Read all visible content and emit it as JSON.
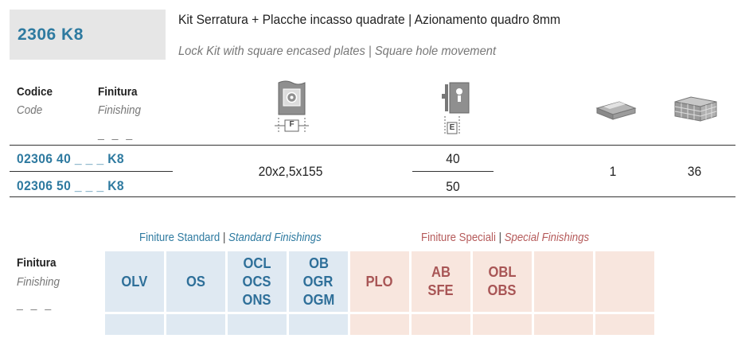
{
  "header": {
    "code": "2306 K8",
    "title_it": "Kit Serratura + Placche incasso quadrate | Azionamento quadro 8mm",
    "title_en": "Lock Kit with square encased plates | Square hole movement"
  },
  "columns": {
    "code_label": "Codice",
    "code_label_en": "Code",
    "finish_label": "Finitura",
    "finish_label_en": "Finishing",
    "finish_placeholder": "_ _ _",
    "f_label": "F",
    "e_label": "E",
    "icons": [
      "plate-dimension-icon",
      "backset-icon",
      "single-pack-icon",
      "box-pack-icon"
    ]
  },
  "rows": [
    {
      "code": "02306 40 _ _ _ K8",
      "e": "40"
    },
    {
      "code": "02306 50 _ _ _ K8",
      "e": "50"
    }
  ],
  "shared": {
    "f": "20x2,5x155",
    "pack": "1",
    "box": "36"
  },
  "finishes": {
    "label": "Finitura",
    "label_en": "Finishing",
    "placeholder": "_ _ _",
    "standard_title": "Finiture Standard",
    "standard_title_en": "Standard Finishings",
    "special_title": "Finiture Speciali",
    "special_title_en": "Special Finishings",
    "separator": "|",
    "standard": [
      [
        "OLV"
      ],
      [
        "OS"
      ],
      [
        "OCL",
        "OCS",
        "ONS"
      ],
      [
        "OB",
        "OGR",
        "OGM"
      ]
    ],
    "special": [
      [
        "PLO"
      ],
      [
        "AB",
        "SFE"
      ],
      [
        "OBL",
        "OBS"
      ],
      [],
      []
    ],
    "colors": {
      "standard_bg": "#dfe9f2",
      "special_bg": "#f8e6de",
      "standard_text": "#2e6f99",
      "special_text": "#a85555"
    }
  }
}
